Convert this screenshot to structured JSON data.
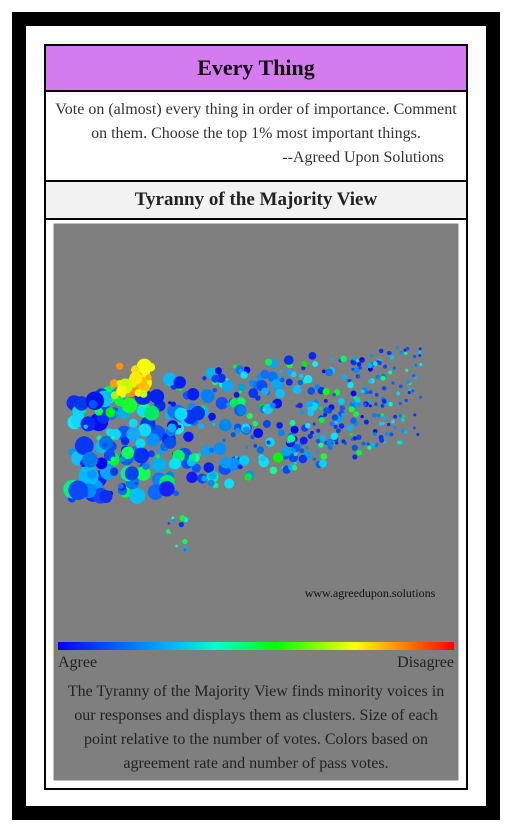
{
  "header": {
    "title": "Every Thing"
  },
  "description": {
    "text": "Vote on (almost) every thing in order of importance. Comment on them. Choose the top 1% most important things.",
    "attribution": "--Agreed Upon Solutions"
  },
  "view": {
    "title": "Tyranny of the Majority View",
    "watermark": "www.agreedupon.solutions",
    "legend": {
      "low": "Agree",
      "high": "Disagree"
    },
    "caption": "The Tyranny of the Majority View finds minority voices in our responses and displays them as clusters. Size of each point relative to the number of votes. Colors based on agreement rate and number of pass votes."
  }
}
